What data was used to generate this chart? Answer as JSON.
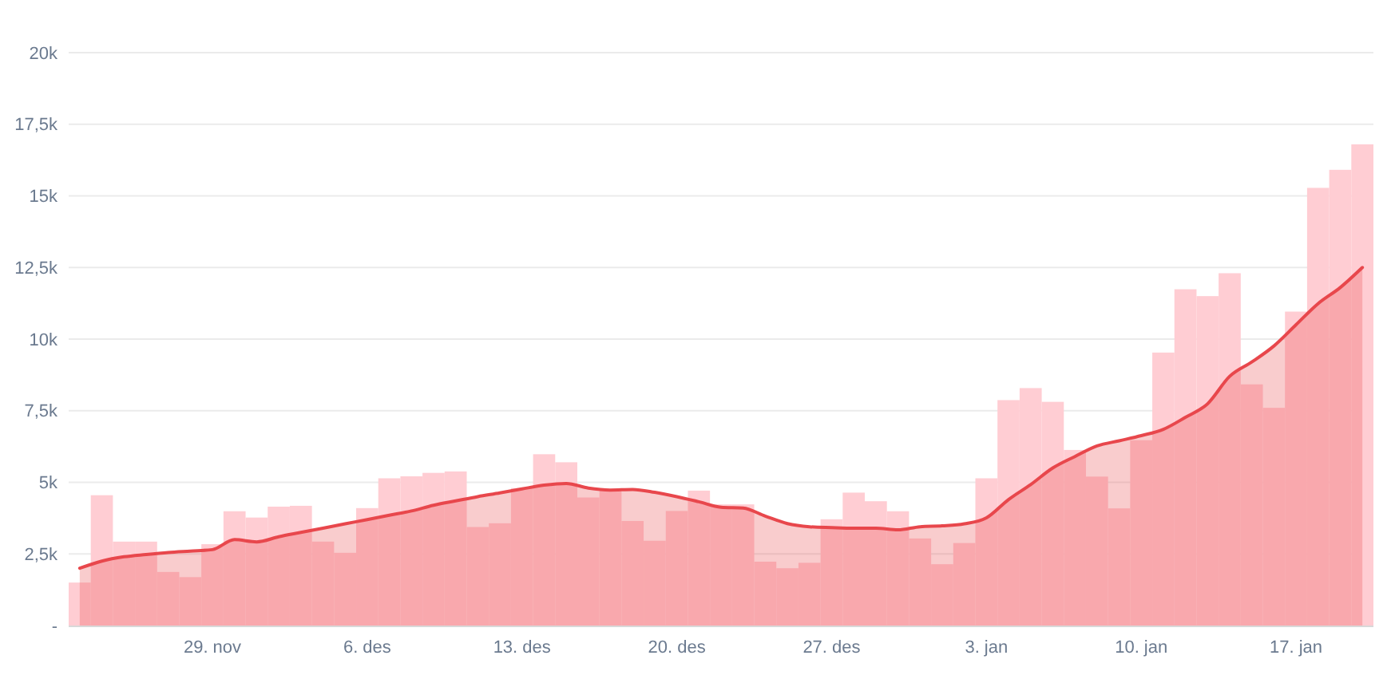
{
  "chart_data": {
    "type": "bar",
    "categories": [
      null,
      null,
      null,
      null,
      null,
      null,
      "29. nov",
      null,
      null,
      null,
      null,
      null,
      null,
      "6. des",
      null,
      null,
      null,
      null,
      null,
      null,
      "13. des",
      null,
      null,
      null,
      null,
      null,
      null,
      "20. des",
      null,
      null,
      null,
      null,
      null,
      null,
      "27. des",
      null,
      null,
      null,
      null,
      null,
      null,
      "3. jan",
      null,
      null,
      null,
      null,
      null,
      null,
      "10. jan",
      null,
      null,
      null,
      null,
      null,
      null,
      "17. jan",
      null,
      null,
      null
    ],
    "series": [
      {
        "color": "#ffcdd3",
        "values": [
          1500,
          4550,
          2930,
          2930,
          1870,
          1690,
          2840,
          3990,
          3770,
          4150,
          4180,
          2930,
          2540,
          4100,
          5140,
          5210,
          5330,
          5380,
          3440,
          3570,
          4800,
          5980,
          5700,
          4470,
          4750,
          3650,
          2960,
          4000,
          4710,
          4230,
          4230,
          2230,
          2000,
          2190,
          3710,
          4640,
          4340,
          3990,
          3040,
          2140,
          2880,
          5140,
          7870,
          8290,
          7810,
          6130,
          5200,
          4090,
          6470,
          9530,
          11740,
          11500,
          12300,
          8420,
          7600,
          10960,
          15280,
          15910,
          16800
        ]
      },
      {
        "type": "area",
        "color": "#e8474c",
        "values": [
          2000,
          2250,
          2400,
          2480,
          2550,
          2600,
          2650,
          3000,
          2920,
          3100,
          3250,
          3400,
          3550,
          3700,
          3850,
          4000,
          4200,
          4350,
          4500,
          4630,
          4770,
          4900,
          4960,
          4800,
          4730,
          4750,
          4650,
          4500,
          4320,
          4130,
          4100,
          3820,
          3560,
          3450,
          3420,
          3400,
          3400,
          3340,
          3450,
          3480,
          3550,
          3760,
          4400,
          4920,
          5500,
          5900,
          6270,
          6450,
          6630,
          6850,
          7270,
          7740,
          8700,
          9200,
          9760,
          10500,
          11240,
          11800,
          12500
        ]
      }
    ],
    "ylim": [
      0,
      20000
    ],
    "yticks": [
      {
        "value": 0,
        "label": "-"
      },
      {
        "value": 2500,
        "label": "2,5k"
      },
      {
        "value": 5000,
        "label": "5k"
      },
      {
        "value": 7500,
        "label": "7,5k"
      },
      {
        "value": 10000,
        "label": "10k"
      },
      {
        "value": 12500,
        "label": "12,5k"
      },
      {
        "value": 15000,
        "label": "15k"
      },
      {
        "value": 17500,
        "label": "17,5k"
      },
      {
        "value": 20000,
        "label": "20k"
      }
    ],
    "grid": "y"
  }
}
